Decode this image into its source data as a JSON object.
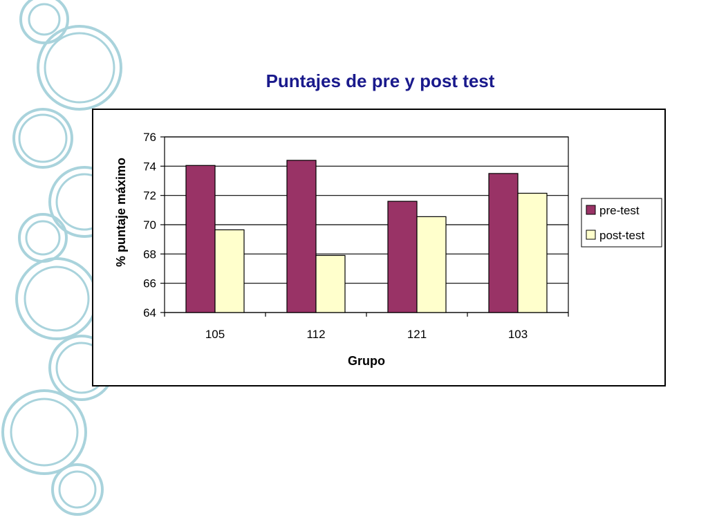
{
  "colors": {
    "title": "#1a1a8c",
    "decor_ring": "#a9d3dc",
    "pre_test": "#993366",
    "post_test": "#ffffcc"
  },
  "chart_data": {
    "type": "bar",
    "title": "Puntajes de pre y post test",
    "xlabel": "Grupo",
    "ylabel": "% puntaje máximo",
    "categories": [
      "105",
      "112",
      "121",
      "103"
    ],
    "series": [
      {
        "name": "pre-test",
        "values": [
          74.05,
          74.4,
          71.6,
          73.5
        ]
      },
      {
        "name": "post-test",
        "values": [
          69.65,
          67.9,
          70.55,
          72.15
        ]
      }
    ],
    "ylim": [
      64,
      76
    ],
    "yticks": [
      "64",
      "66",
      "68",
      "70",
      "72",
      "74",
      "76"
    ],
    "grid": true,
    "legend_position": "right"
  }
}
